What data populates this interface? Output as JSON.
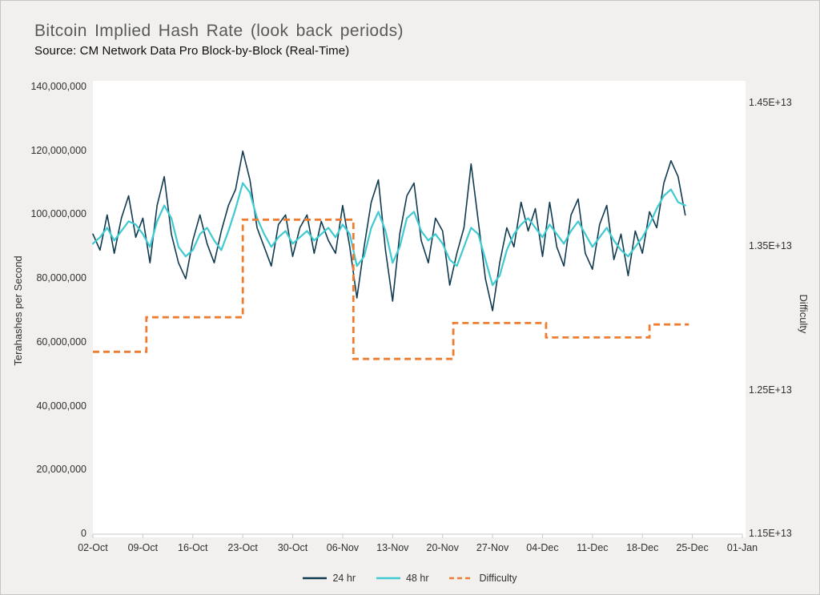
{
  "title": "Bitcoin Implied Hash Rate (look back periods)",
  "subtitle": "Source: CM Network Data Pro Block-by-Block (Real-Time)",
  "colors": {
    "background": "#f1f0ee",
    "plot_background": "#ffffff",
    "axis_line": "#c9c9c9",
    "series_24hr": "#0f3a50",
    "series_48hr": "#3fc9d1",
    "series_difficulty": "#ed7d31",
    "title_text": "#595959"
  },
  "chart_data": {
    "type": "line",
    "title": "Bitcoin Implied Hash Rate (look back periods)",
    "subtitle": "Source: CM Network Data Pro Block-by-Block (Real-Time)",
    "grid": false,
    "legend_position": "bottom-center",
    "left_axis": {
      "label": "Terahashes per Second",
      "min": 0,
      "max": 140000000,
      "ticks": [
        {
          "label": "140,000,000",
          "value": 140000000
        },
        {
          "label": "120,000,000",
          "value": 120000000
        },
        {
          "label": "100,000,000",
          "value": 100000000
        },
        {
          "label": "80,000,000",
          "value": 80000000
        },
        {
          "label": "60,000,000",
          "value": 60000000
        },
        {
          "label": "40,000,000",
          "value": 40000000
        },
        {
          "label": "20,000,000",
          "value": 20000000
        },
        {
          "label": "0",
          "value": 0
        }
      ]
    },
    "right_axis": {
      "label": "Difficulty",
      "min": 11500000000000,
      "max": 14612000000000,
      "ticks": [
        {
          "label": "1.45E+13",
          "value": 14500000000000
        },
        {
          "label": "1.35E+13",
          "value": 13500000000000
        },
        {
          "label": "1.25E+13",
          "value": 12500000000000
        },
        {
          "label": "1.15E+13",
          "value": 11500000000000
        }
      ]
    },
    "x_axis": {
      "total_days": 91,
      "start_label": "02-Oct",
      "ticks": [
        {
          "label": "02-Oct",
          "day": 0
        },
        {
          "label": "09-Oct",
          "day": 7
        },
        {
          "label": "16-Oct",
          "day": 14
        },
        {
          "label": "23-Oct",
          "day": 21
        },
        {
          "label": "30-Oct",
          "day": 28
        },
        {
          "label": "06-Nov",
          "day": 35
        },
        {
          "label": "13-Nov",
          "day": 42
        },
        {
          "label": "20-Nov",
          "day": 49
        },
        {
          "label": "27-Nov",
          "day": 56
        },
        {
          "label": "04-Dec",
          "day": 63
        },
        {
          "label": "11-Dec",
          "day": 70
        },
        {
          "label": "18-Dec",
          "day": 77
        },
        {
          "label": "25-Dec",
          "day": 84
        },
        {
          "label": "01-Jan",
          "day": 91
        }
      ]
    },
    "legend": [
      "24 hr",
      "48 hr",
      "Difficulty"
    ],
    "series": [
      {
        "name": "24 hr",
        "axis": "left",
        "type": "line",
        "color": "#0f3a50",
        "x_step_days": 1,
        "unit_multiplier": 1000000,
        "values": [
          94,
          89,
          100,
          88,
          99,
          106,
          93,
          99,
          85,
          103,
          112,
          94,
          85,
          80,
          92,
          100,
          91,
          85,
          95,
          103,
          108,
          120,
          111,
          96,
          90,
          84,
          97,
          100,
          87,
          96,
          100,
          88,
          98,
          92,
          88,
          103,
          90,
          74,
          90,
          104,
          111,
          89,
          73,
          94,
          106,
          110,
          92,
          85,
          99,
          95,
          78,
          88,
          96,
          116,
          98,
          80,
          70,
          85,
          96,
          90,
          104,
          95,
          102,
          87,
          104,
          90,
          84,
          100,
          105,
          88,
          83,
          97,
          103,
          86,
          94,
          81,
          95,
          88,
          101,
          96,
          110,
          117,
          112,
          100
        ]
      },
      {
        "name": "48 hr",
        "axis": "left",
        "type": "line",
        "color": "#3fc9d1",
        "x_step_days": 1,
        "unit_multiplier": 1000000,
        "values": [
          91,
          93,
          96,
          92,
          95,
          98,
          97,
          94,
          90,
          98,
          103,
          99,
          90,
          87,
          89,
          94,
          96,
          92,
          89,
          95,
          102,
          110,
          107,
          99,
          94,
          90,
          93,
          95,
          91,
          93,
          95,
          92,
          94,
          96,
          93,
          97,
          94,
          84,
          87,
          96,
          101,
          95,
          85,
          90,
          99,
          101,
          95,
          92,
          94,
          91,
          86,
          84,
          90,
          96,
          94,
          86,
          78,
          81,
          89,
          94,
          97,
          99,
          96,
          93,
          97,
          94,
          91,
          95,
          98,
          94,
          90,
          93,
          96,
          92,
          89,
          87,
          90,
          93,
          97,
          102,
          106,
          108,
          104,
          103
        ]
      },
      {
        "name": "Difficulty",
        "axis": "right",
        "type": "step-dashed",
        "color": "#ed7d31",
        "segments": [
          {
            "start_day": 0,
            "end_day": 7.5,
            "value": 12770000000000
          },
          {
            "start_day": 7.5,
            "end_day": 21,
            "value": 13010000000000
          },
          {
            "start_day": 21,
            "end_day": 36.5,
            "value": 13690000000000
          },
          {
            "start_day": 36.5,
            "end_day": 50.5,
            "value": 12720000000000
          },
          {
            "start_day": 50.5,
            "end_day": 63.5,
            "value": 12970000000000
          },
          {
            "start_day": 63.5,
            "end_day": 78,
            "value": 12870000000000
          },
          {
            "start_day": 78,
            "end_day": 83.5,
            "value": 12960000000000
          }
        ]
      }
    ]
  }
}
